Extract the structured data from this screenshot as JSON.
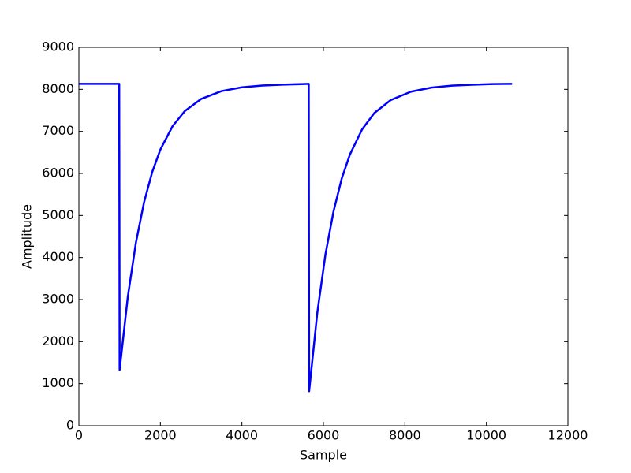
{
  "chart_data": {
    "type": "line",
    "xlabel": "Sample",
    "ylabel": "Amplitude",
    "x": [
      0,
      990,
      1000,
      1200,
      1400,
      1600,
      1800,
      2000,
      2300,
      2600,
      3000,
      3500,
      4000,
      4500,
      5000,
      5640,
      5650,
      5850,
      6050,
      6250,
      6450,
      6650,
      6950,
      7250,
      7650,
      8150,
      8650,
      9150,
      9650,
      10150,
      10630
    ],
    "values": [
      8130,
      8130,
      1330,
      3062,
      4355,
      5317,
      6034,
      6568,
      7125,
      7484,
      7771,
      7958,
      8048,
      8090,
      8111,
      8130,
      820,
      2684,
      4073,
      5104,
      5879,
      6449,
      7048,
      7436,
      7744,
      7945,
      8042,
      8088,
      8110,
      8125,
      8130
    ],
    "color": "#0000ff",
    "xlim": [
      0,
      12000
    ],
    "xticks": [
      0,
      2000,
      4000,
      6000,
      8000,
      10000,
      12000
    ],
    "ylim": [
      0,
      9000
    ],
    "yticks": [
      0,
      1000,
      2000,
      3000,
      4000,
      5000,
      6000,
      7000,
      8000,
      9000
    ],
    "grid": false
  }
}
